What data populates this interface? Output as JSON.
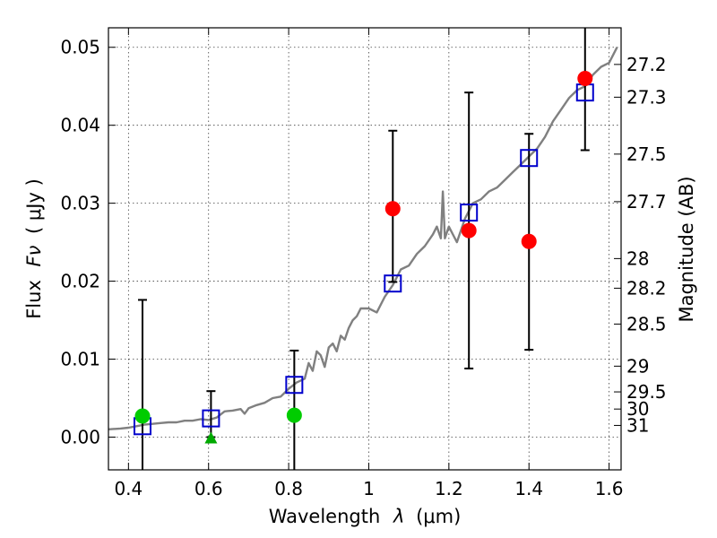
{
  "chart_data": {
    "type": "scatter",
    "xlabel": "Wavelength",
    "xlabel_symbol": "λ",
    "xlabel_unit": "(μm)",
    "ylabel": "Flux",
    "ylabel_symbol": "Fν",
    "ylabel_unit": "( μJy )",
    "y2label": "Magnitude (AB)",
    "xlim": [
      0.35,
      1.63
    ],
    "ylim": [
      -0.0042,
      0.0525
    ],
    "x_ticks": [
      0.4,
      0.6,
      0.8,
      1.0,
      1.2,
      1.4,
      1.6
    ],
    "x_tick_labels": [
      "0.4",
      "0.6",
      "0.8",
      "1",
      "1.2",
      "1.4",
      "1.6"
    ],
    "y_ticks": [
      0.0,
      0.01,
      0.02,
      0.03,
      0.04,
      0.05
    ],
    "y_tick_labels": [
      "0.00",
      "0.01",
      "0.02",
      "0.03",
      "0.04",
      "0.05"
    ],
    "magnitude_ticks": [
      {
        "label": "27.2",
        "flux": 0.0478
      },
      {
        "label": "27.3",
        "flux": 0.0436
      },
      {
        "label": "27.5",
        "flux": 0.0363
      },
      {
        "label": "27.7",
        "flux": 0.0302
      },
      {
        "label": "28",
        "flux": 0.0229
      },
      {
        "label": "28.2",
        "flux": 0.0191
      },
      {
        "label": "28.5",
        "flux": 0.0145
      },
      {
        "label": "29",
        "flux": 0.0091
      },
      {
        "label": "29.5",
        "flux": 0.0058
      },
      {
        "label": "30",
        "flux": 0.0036
      },
      {
        "label": "31",
        "flux": 0.0015
      }
    ],
    "grid": true,
    "series": [
      {
        "role": "model-spectrum",
        "style": "line",
        "color": "#808080",
        "points": [
          [
            0.35,
            0.001
          ],
          [
            0.38,
            0.0011
          ],
          [
            0.4,
            0.0012
          ],
          [
            0.42,
            0.0014
          ],
          [
            0.44,
            0.0016
          ],
          [
            0.46,
            0.0017
          ],
          [
            0.48,
            0.0018
          ],
          [
            0.5,
            0.0019
          ],
          [
            0.52,
            0.0019
          ],
          [
            0.54,
            0.0021
          ],
          [
            0.56,
            0.0021
          ],
          [
            0.58,
            0.0023
          ],
          [
            0.6,
            0.0022
          ],
          [
            0.62,
            0.0025
          ],
          [
            0.64,
            0.0033
          ],
          [
            0.66,
            0.0034
          ],
          [
            0.68,
            0.0036
          ],
          [
            0.69,
            0.003
          ],
          [
            0.7,
            0.0037
          ],
          [
            0.72,
            0.0041
          ],
          [
            0.74,
            0.0044
          ],
          [
            0.76,
            0.005
          ],
          [
            0.78,
            0.0052
          ],
          [
            0.8,
            0.0062
          ],
          [
            0.82,
            0.007
          ],
          [
            0.84,
            0.0075
          ],
          [
            0.85,
            0.0095
          ],
          [
            0.86,
            0.0085
          ],
          [
            0.87,
            0.011
          ],
          [
            0.88,
            0.0105
          ],
          [
            0.89,
            0.009
          ],
          [
            0.9,
            0.0115
          ],
          [
            0.91,
            0.012
          ],
          [
            0.92,
            0.011
          ],
          [
            0.93,
            0.013
          ],
          [
            0.94,
            0.0125
          ],
          [
            0.95,
            0.014
          ],
          [
            0.96,
            0.015
          ],
          [
            0.97,
            0.0155
          ],
          [
            0.98,
            0.0165
          ],
          [
            1.0,
            0.0165
          ],
          [
            1.02,
            0.016
          ],
          [
            1.04,
            0.018
          ],
          [
            1.06,
            0.0195
          ],
          [
            1.08,
            0.0215
          ],
          [
            1.1,
            0.022
          ],
          [
            1.12,
            0.0235
          ],
          [
            1.14,
            0.0245
          ],
          [
            1.16,
            0.026
          ],
          [
            1.17,
            0.027
          ],
          [
            1.18,
            0.0255
          ],
          [
            1.185,
            0.0315
          ],
          [
            1.19,
            0.0255
          ],
          [
            1.2,
            0.027
          ],
          [
            1.22,
            0.025
          ],
          [
            1.24,
            0.028
          ],
          [
            1.26,
            0.03
          ],
          [
            1.28,
            0.0305
          ],
          [
            1.3,
            0.0315
          ],
          [
            1.32,
            0.032
          ],
          [
            1.34,
            0.033
          ],
          [
            1.36,
            0.034
          ],
          [
            1.38,
            0.035
          ],
          [
            1.4,
            0.036
          ],
          [
            1.42,
            0.037
          ],
          [
            1.44,
            0.0385
          ],
          [
            1.46,
            0.0405
          ],
          [
            1.48,
            0.042
          ],
          [
            1.5,
            0.0435
          ],
          [
            1.52,
            0.0445
          ],
          [
            1.54,
            0.045
          ],
          [
            1.56,
            0.0465
          ],
          [
            1.58,
            0.0475
          ],
          [
            1.6,
            0.048
          ],
          [
            1.62,
            0.05
          ]
        ]
      },
      {
        "role": "model-photometry",
        "style": "open-square",
        "color": "#0000cc",
        "points": [
          [
            0.435,
            0.0014
          ],
          [
            0.606,
            0.0024
          ],
          [
            0.814,
            0.0067
          ],
          [
            1.06,
            0.0197
          ],
          [
            1.25,
            0.0288
          ],
          [
            1.4,
            0.0358
          ],
          [
            1.54,
            0.0442
          ]
        ]
      },
      {
        "role": "observed-red",
        "style": "filled-circle",
        "color": "#ff0000",
        "points": [
          [
            1.06,
            0.0293
          ],
          [
            1.25,
            0.0265
          ],
          [
            1.4,
            0.0251
          ],
          [
            1.54,
            0.046
          ]
        ],
        "errors": [
          [
            0.0199,
            0.0393
          ],
          [
            0.0088,
            0.0442
          ],
          [
            0.0112,
            0.0389
          ],
          [
            0.0368,
            0.0525
          ]
        ]
      },
      {
        "role": "observed-green",
        "style": "filled-circle",
        "color": "#00cc00",
        "points": [
          [
            0.435,
            0.0027
          ],
          [
            0.814,
            0.0028
          ]
        ],
        "errors": [
          [
            -0.0042,
            0.0176
          ],
          [
            -0.0042,
            0.0111
          ]
        ]
      },
      {
        "role": "upper-limit",
        "style": "triangle",
        "color": "#00aa00",
        "points": [
          [
            0.606,
            0.0
          ]
        ],
        "errors": [
          [
            0.0,
            0.0059
          ]
        ]
      }
    ]
  }
}
